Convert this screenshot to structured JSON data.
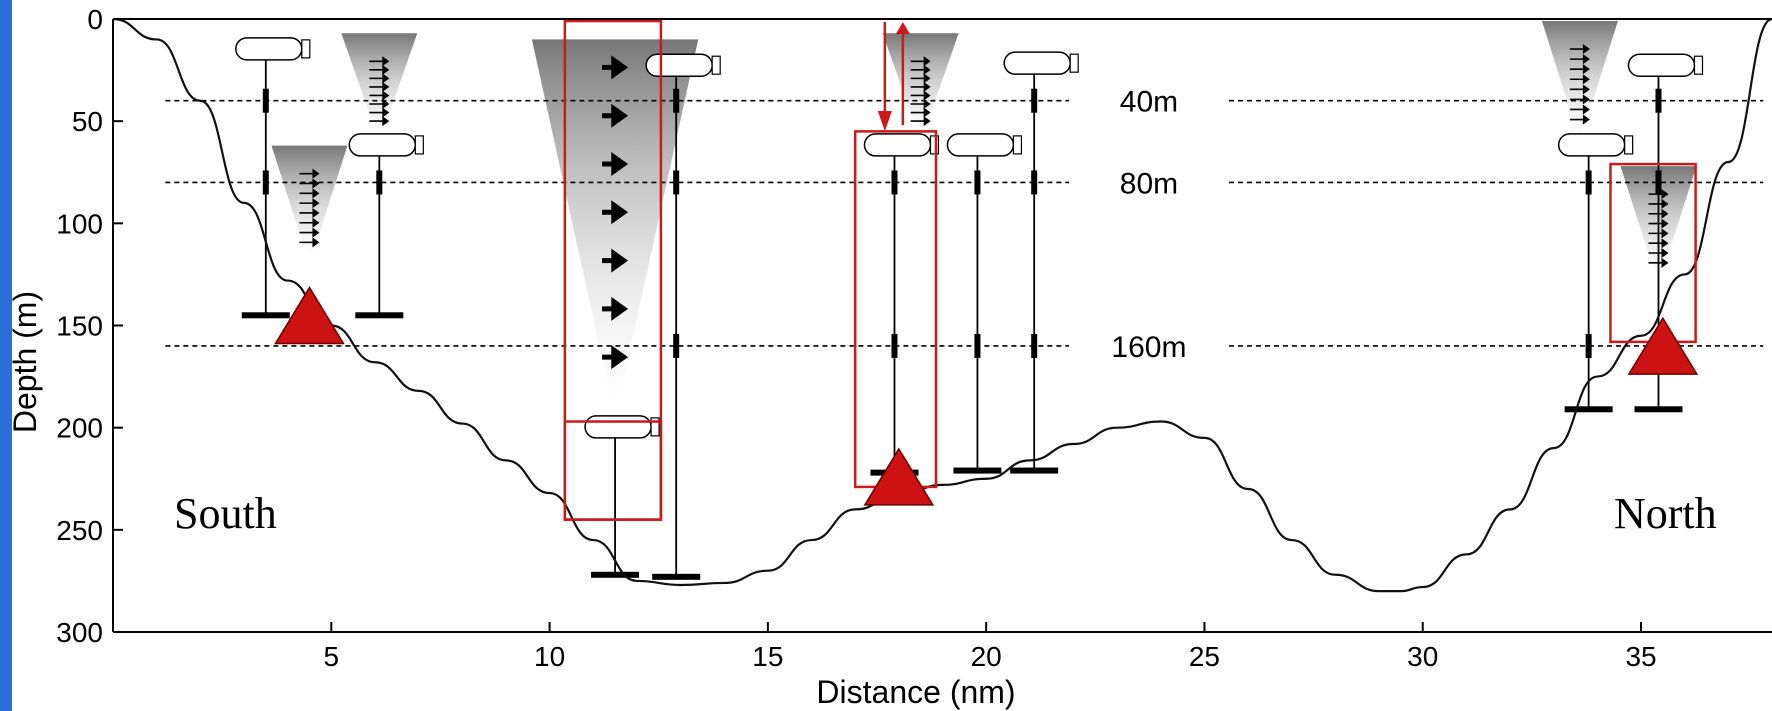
{
  "chart_data": {
    "type": "line",
    "xlabel": "Distance (nm)",
    "ylabel": "Depth (m)",
    "xlim": [
      0,
      38
    ],
    "ylim": [
      300,
      0
    ],
    "x_ticks": [
      5,
      10,
      15,
      20,
      25,
      30,
      35
    ],
    "y_ticks": [
      0,
      50,
      100,
      150,
      200,
      250,
      300
    ],
    "grid": false,
    "bathymetry": {
      "x": [
        0,
        1,
        2,
        3,
        4,
        5,
        6,
        7,
        8,
        9,
        10,
        11,
        12,
        13,
        14,
        15,
        16,
        17,
        18,
        19,
        20,
        21,
        22,
        23,
        24,
        25,
        26,
        27,
        28,
        29,
        29.5,
        30,
        31,
        32,
        33,
        34,
        35,
        36,
        37,
        38
      ],
      "y": [
        0,
        10,
        40,
        90,
        128,
        150,
        168,
        182,
        198,
        216,
        232,
        255,
        275,
        277,
        276,
        270,
        255,
        240,
        233,
        228,
        225,
        216,
        208,
        200,
        197,
        205,
        230,
        255,
        272,
        280,
        280,
        278,
        262,
        240,
        210,
        175,
        155,
        125,
        70,
        0
      ]
    },
    "reference_lines": [
      {
        "depth": 40,
        "label": "40m"
      },
      {
        "depth": 80,
        "label": "80m"
      },
      {
        "depth": 160,
        "label": "160m"
      }
    ],
    "moorings": [
      {
        "x": 3.5,
        "top": 20,
        "bottom": 145
      },
      {
        "x": 6.1,
        "top": 67,
        "bottom": 145
      },
      {
        "x": 11.5,
        "top": 205,
        "bottom": 272
      },
      {
        "x": 12.9,
        "top": 28,
        "bottom": 273
      },
      {
        "x": 17.9,
        "top": 67,
        "bottom": 222
      },
      {
        "x": 19.8,
        "top": 67,
        "bottom": 221
      },
      {
        "x": 21.1,
        "top": 27,
        "bottom": 221
      },
      {
        "x": 33.8,
        "top": 67,
        "bottom": 191
      },
      {
        "x": 35.4,
        "top": 28,
        "bottom": 191
      }
    ],
    "adcp_beams": [
      {
        "x": 6.1,
        "top": 7,
        "bottom": 60,
        "direction": "up"
      },
      {
        "x": 4.5,
        "top": 62,
        "bottom": 120,
        "direction": "up"
      },
      {
        "x": 11.5,
        "top": 10,
        "bottom": 195,
        "direction": "up"
      },
      {
        "x": 18.5,
        "top": 7,
        "bottom": 60,
        "direction": "up"
      },
      {
        "x": 33.6,
        "top": 1,
        "bottom": 60,
        "direction": "up"
      },
      {
        "x": 35.4,
        "top": 72,
        "bottom": 130,
        "direction": "up"
      }
    ],
    "highlight_boxes": [
      {
        "x0": 10.35,
        "x1": 12.55,
        "y0": 1,
        "y1": 245
      },
      {
        "x0": 10.35,
        "x1": 12.55,
        "y0": 197,
        "y1": 245
      },
      {
        "x0": 17.0,
        "x1": 18.85,
        "y0": 55,
        "y1": 229
      },
      {
        "x0": 34.3,
        "x1": 36.25,
        "y0": 71,
        "y1": 158
      }
    ],
    "markers": [
      {
        "x": 4.5,
        "depth": 150
      },
      {
        "x": 18.0,
        "depth": 229
      },
      {
        "x": 35.5,
        "depth": 165
      }
    ],
    "annotations": [
      "South",
      "North"
    ]
  }
}
